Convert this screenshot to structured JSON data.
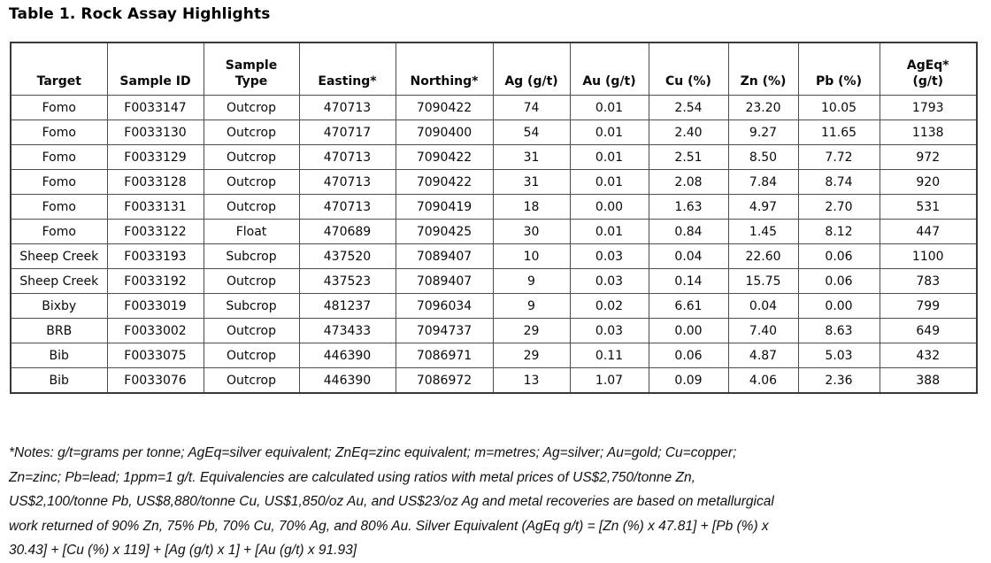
{
  "title": "Table 1. Rock Assay Highlights",
  "table": {
    "columns": [
      "Target",
      "Sample ID",
      "Sample\nType",
      "Easting*",
      "Northing*",
      "Ag (g/t)",
      "Au (g/t)",
      "Cu (%)",
      "Zn (%)",
      "Pb (%)",
      "AgEq*\n(g/t)"
    ],
    "rows": [
      [
        "Fomo",
        "F0033147",
        "Outcrop",
        "470713",
        "7090422",
        "74",
        "0.01",
        "2.54",
        "23.20",
        "10.05",
        "1793"
      ],
      [
        "Fomo",
        "F0033130",
        "Outcrop",
        "470717",
        "7090400",
        "54",
        "0.01",
        "2.40",
        "9.27",
        "11.65",
        "1138"
      ],
      [
        "Fomo",
        "F0033129",
        "Outcrop",
        "470713",
        "7090422",
        "31",
        "0.01",
        "2.51",
        "8.50",
        "7.72",
        "972"
      ],
      [
        "Fomo",
        "F0033128",
        "Outcrop",
        "470713",
        "7090422",
        "31",
        "0.01",
        "2.08",
        "7.84",
        "8.74",
        "920"
      ],
      [
        "Fomo",
        "F0033131",
        "Outcrop",
        "470713",
        "7090419",
        "18",
        "0.00",
        "1.63",
        "4.97",
        "2.70",
        "531"
      ],
      [
        "Fomo",
        "F0033122",
        "Float",
        "470689",
        "7090425",
        "30",
        "0.01",
        "0.84",
        "1.45",
        "8.12",
        "447"
      ],
      [
        "Sheep Creek",
        "F0033193",
        "Subcrop",
        "437520",
        "7089407",
        "10",
        "0.03",
        "0.04",
        "22.60",
        "0.06",
        "1100"
      ],
      [
        "Sheep Creek",
        "F0033192",
        "Outcrop",
        "437523",
        "7089407",
        "9",
        "0.03",
        "0.14",
        "15.75",
        "0.06",
        "783"
      ],
      [
        "Bixby",
        "F0033019",
        "Subcrop",
        "481237",
        "7096034",
        "9",
        "0.02",
        "6.61",
        "0.04",
        "0.00",
        "799"
      ],
      [
        "BRB",
        "F0033002",
        "Outcrop",
        "473433",
        "7094737",
        "29",
        "0.03",
        "0.00",
        "7.40",
        "8.63",
        "649"
      ],
      [
        "Bib",
        "F0033075",
        "Outcrop",
        "446390",
        "7086971",
        "29",
        "0.11",
        "0.06",
        "4.87",
        "5.03",
        "432"
      ],
      [
        "Bib",
        "F0033076",
        "Outcrop",
        "446390",
        "7086972",
        "13",
        "1.07",
        "0.09",
        "4.06",
        "2.36",
        "388"
      ]
    ]
  },
  "notes": "*Notes: g/t=grams per tonne; AgEq=silver equivalent; ZnEq=zinc equivalent; m=metres; Ag=silver; Au=gold; Cu=copper;\nZn=zinc; Pb=lead; 1ppm=1 g/t. Equivalencies are calculated using ratios with metal prices of US$2,750/tonne Zn,\nUS$2,100/tonne Pb, US$8,880/tonne Cu, US$1,850/oz Au, and US$23/oz Ag and metal recoveries are based on metallurgical\nwork returned of 90% Zn, 75% Pb, 70% Cu, 70% Ag, and 80% Au. Silver Equivalent (AgEq g/t) = [Zn (%) x 47.81] + [Pb (%) x\n30.43] + [Cu (%) x 119] + [Ag (g/t) x 1] + [Au (g/t) x 91.93]"
}
